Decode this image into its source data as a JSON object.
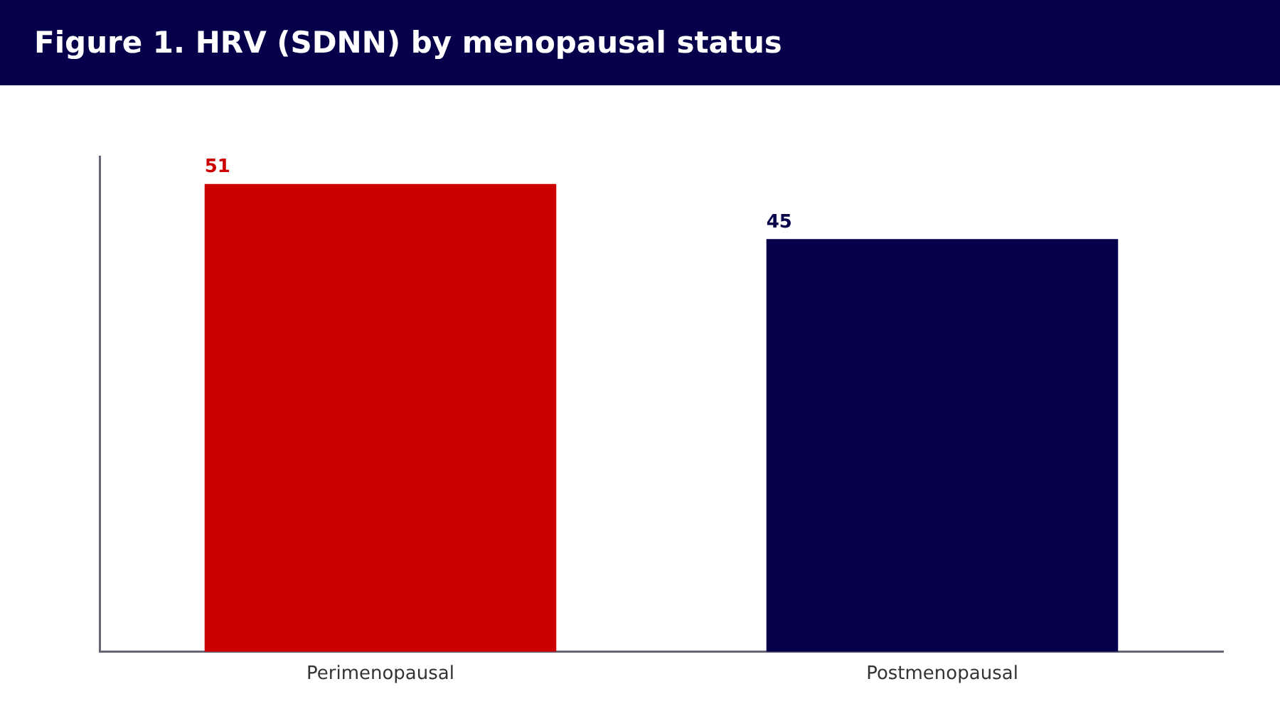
{
  "chart_data": {
    "type": "bar",
    "title": "Figure 1. HRV (SDNN) by menopausal status",
    "categories": [
      "Perimenopausal",
      "Postmenopausal"
    ],
    "values": [
      51,
      45
    ],
    "colors": [
      "#cc0000",
      "#06004a"
    ],
    "ylim": [
      0,
      54
    ],
    "data_labels": true
  }
}
